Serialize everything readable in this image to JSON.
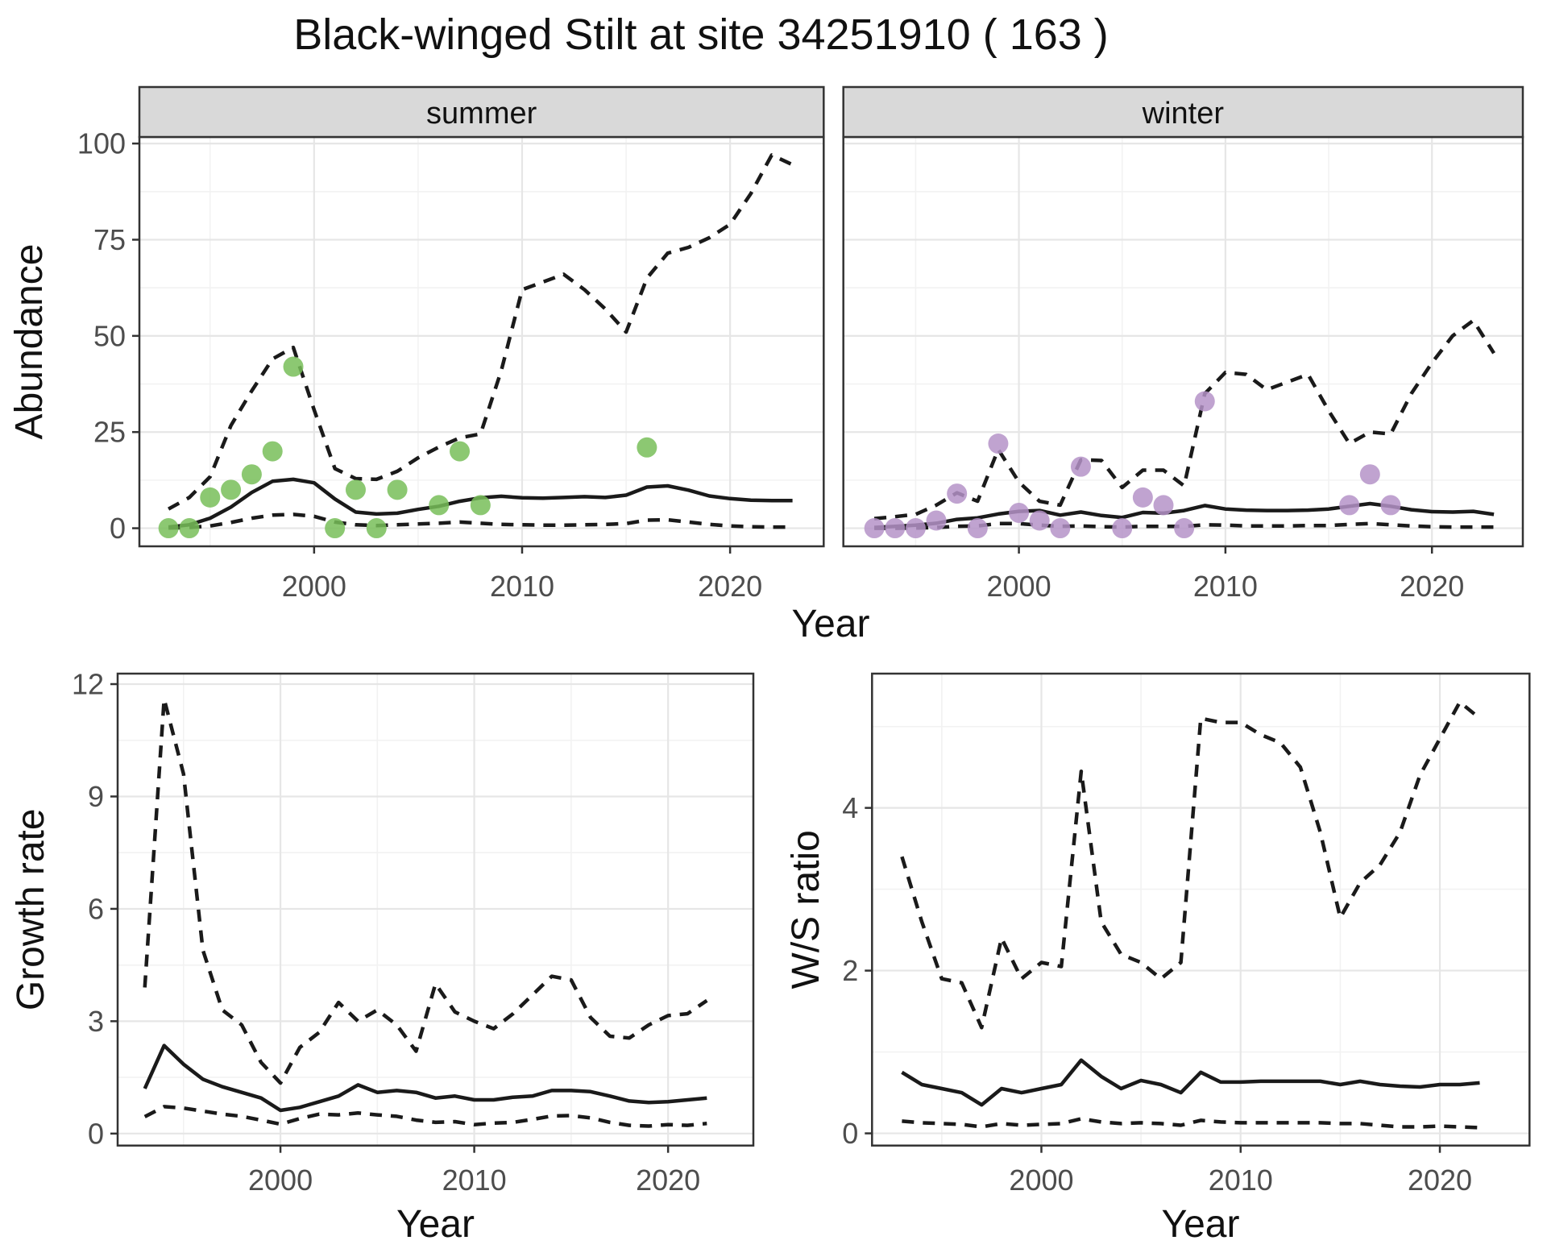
{
  "title": "Black-winged Stilt at site 34251910 ( 163 )",
  "colors": {
    "observed_summer": "#78be59",
    "observed_winter": "#b593c8",
    "line": "#1a1a1a",
    "grid_major": "#e6e6e6",
    "grid_minor": "#f2f2f2",
    "strip_fill": "#d9d9d9",
    "panel_border": "#333333",
    "tick_text": "#4d4d4d",
    "background": "#ffffff"
  },
  "chart_data": [
    {
      "type": "line",
      "name": "abundance-summer",
      "facet_label": "summer",
      "xlabel": "Year",
      "ylabel": "Abundance",
      "xlim": [
        1991.6,
        2024.5
      ],
      "ylim": [
        -4.7,
        101.7
      ],
      "x_ticks": [
        2000,
        2010,
        2020
      ],
      "x_minor": [
        1995,
        2005,
        2015
      ],
      "y_ticks": [
        0,
        25,
        50,
        75,
        100
      ],
      "y_minor": [
        12.5,
        37.5,
        62.5,
        87.5
      ],
      "grid": true,
      "legend": "none",
      "series": [
        {
          "name": "median",
          "style": "solid",
          "x": [
            1993,
            1994,
            1995,
            1996,
            1997,
            1998,
            1999,
            2000,
            2001,
            2002,
            2003,
            2004,
            2005,
            2006,
            2007,
            2008,
            2009,
            2010,
            2011,
            2012,
            2013,
            2014,
            2015,
            2016,
            2017,
            2018,
            2019,
            2020,
            2021,
            2022,
            2023
          ],
          "y": [
            0.3,
            0.9,
            2.6,
            5.5,
            9.3,
            12.2,
            12.7,
            11.8,
            7.6,
            4.2,
            3.7,
            3.9,
            4.9,
            5.7,
            7.0,
            7.9,
            8.3,
            7.9,
            7.8,
            8.0,
            8.2,
            8.0,
            8.6,
            10.7,
            11.0,
            9.9,
            8.4,
            7.7,
            7.3,
            7.2,
            7.2
          ]
        },
        {
          "name": "upper95",
          "style": "dashed",
          "x": [
            1993,
            1994,
            1995,
            1996,
            1997,
            1998,
            1999,
            2000,
            2001,
            2002,
            2003,
            2004,
            2005,
            2006,
            2007,
            2008,
            2009,
            2010,
            2011,
            2012,
            2013,
            2014,
            2015,
            2016,
            2017,
            2018,
            2019,
            2020,
            2021,
            2022,
            2023
          ],
          "y": [
            5,
            8,
            13.4,
            26.7,
            35.7,
            44,
            47,
            30.8,
            15.5,
            12.9,
            12.7,
            14.8,
            18.3,
            21.1,
            23.5,
            24.5,
            41,
            62,
            64,
            66,
            62,
            57,
            51,
            65,
            71.5,
            73,
            75.5,
            79,
            87,
            97,
            94.5
          ]
        },
        {
          "name": "lower95",
          "style": "dashed",
          "x": [
            1993,
            1994,
            1995,
            1996,
            1997,
            1998,
            1999,
            2000,
            2001,
            2002,
            2003,
            2004,
            2005,
            2006,
            2007,
            2008,
            2009,
            2010,
            2011,
            2012,
            2013,
            2014,
            2015,
            2016,
            2017,
            2018,
            2019,
            2020,
            2021,
            2022,
            2023
          ],
          "y": [
            0.05,
            0.2,
            0.6,
            1.5,
            2.6,
            3.4,
            3.6,
            3.1,
            1.6,
            0.9,
            0.7,
            0.9,
            1.1,
            1.3,
            1.6,
            1.3,
            1.0,
            0.9,
            0.8,
            0.8,
            0.9,
            1.0,
            1.2,
            2.1,
            2.2,
            1.6,
            1.0,
            0.6,
            0.4,
            0.3,
            0.3
          ]
        },
        {
          "name": "observed",
          "style": "points",
          "color": "#78be59",
          "x": [
            1993,
            1994,
            1995,
            1996,
            1997,
            1998,
            1999,
            2001,
            2002,
            2003,
            2004,
            2006,
            2007,
            2008,
            2016
          ],
          "y": [
            0,
            0,
            8,
            10,
            14,
            20,
            42,
            0,
            10,
            0,
            10,
            6,
            20,
            6,
            21
          ]
        }
      ]
    },
    {
      "type": "line",
      "name": "abundance-winter",
      "facet_label": "winter",
      "xlabel": "Year",
      "ylabel": "Abundance",
      "xlim": [
        1991.5,
        2024.4
      ],
      "ylim": [
        -4.7,
        101.7
      ],
      "x_ticks": [
        2000,
        2010,
        2020
      ],
      "x_minor": [
        1995,
        2005,
        2015
      ],
      "y_ticks": [
        0,
        25,
        50,
        75,
        100
      ],
      "y_minor": [
        12.5,
        37.5,
        62.5,
        87.5
      ],
      "grid": true,
      "legend": "none",
      "series": [
        {
          "name": "median",
          "style": "solid",
          "x": [
            1993,
            1994,
            1995,
            1996,
            1997,
            1998,
            1999,
            2000,
            2001,
            2002,
            2003,
            2004,
            2005,
            2006,
            2007,
            2008,
            2009,
            2010,
            2011,
            2012,
            2013,
            2014,
            2015,
            2016,
            2017,
            2018,
            2019,
            2020,
            2021,
            2022,
            2023
          ],
          "y": [
            0.2,
            0.5,
            0.8,
            1.3,
            2.3,
            2.7,
            3.7,
            4.4,
            4.6,
            3.4,
            4.2,
            3.3,
            2.8,
            4.1,
            3.9,
            4.6,
            5.9,
            5.0,
            4.7,
            4.6,
            4.6,
            4.7,
            5.0,
            5.7,
            6.4,
            5.7,
            4.8,
            4.3,
            4.2,
            4.4,
            3.6
          ]
        },
        {
          "name": "upper95",
          "style": "dashed",
          "x": [
            1993,
            1994,
            1995,
            1996,
            1997,
            1998,
            1999,
            2000,
            2001,
            2002,
            2003,
            2004,
            2005,
            2006,
            2007,
            2008,
            2009,
            2010,
            2011,
            2012,
            2013,
            2014,
            2015,
            2016,
            2017,
            2018,
            2019,
            2020,
            2021,
            2022,
            2023
          ],
          "y": [
            2.5,
            3.0,
            3.6,
            6.0,
            9.2,
            7.0,
            20.5,
            12.0,
            7.0,
            6.0,
            17.8,
            17.6,
            10.6,
            15.1,
            15.1,
            11.0,
            35,
            40.5,
            40,
            36,
            38,
            40,
            30.5,
            22,
            25,
            24.5,
            35,
            43,
            50,
            54,
            45.5
          ]
        },
        {
          "name": "lower95",
          "style": "dashed",
          "x": [
            1993,
            1994,
            1995,
            1996,
            1997,
            1998,
            1999,
            2000,
            2001,
            2002,
            2003,
            2004,
            2005,
            2006,
            2007,
            2008,
            2009,
            2010,
            2011,
            2012,
            2013,
            2014,
            2015,
            2016,
            2017,
            2018,
            2019,
            2020,
            2021,
            2022,
            2023
          ],
          "y": [
            0,
            0,
            0.05,
            0.2,
            0.5,
            0.6,
            1.2,
            1.2,
            0.8,
            0.5,
            0.6,
            0.4,
            0.3,
            0.5,
            0.5,
            0.5,
            0.9,
            0.8,
            0.6,
            0.6,
            0.6,
            0.7,
            0.7,
            1.0,
            1.2,
            0.9,
            0.6,
            0.4,
            0.3,
            0.3,
            0.3
          ]
        },
        {
          "name": "observed",
          "style": "points",
          "color": "#b593c8",
          "x": [
            1993,
            1994,
            1995,
            1996,
            1997,
            1998,
            1999,
            2000,
            2001,
            2002,
            2003,
            2005,
            2006,
            2007,
            2008,
            2009,
            2016,
            2017,
            2018
          ],
          "y": [
            0,
            0,
            0,
            2,
            9,
            0,
            22,
            4,
            2,
            0,
            16,
            0,
            8,
            6,
            0,
            33,
            6,
            14,
            6
          ]
        }
      ]
    },
    {
      "type": "line",
      "name": "growth-rate",
      "facet_label": "",
      "xlabel": "Year",
      "ylabel": "Growth rate",
      "xlim": [
        1991.6,
        2024.4
      ],
      "ylim": [
        -0.32,
        12.28
      ],
      "x_ticks": [
        2000,
        2010,
        2020
      ],
      "x_minor": [
        1995,
        2005,
        2015
      ],
      "y_ticks": [
        0,
        3,
        6,
        9,
        12
      ],
      "y_minor": [
        1.5,
        4.5,
        7.5,
        10.5
      ],
      "grid": true,
      "legend": "none",
      "series": [
        {
          "name": "median",
          "style": "solid",
          "x": [
            1993,
            1994,
            1995,
            1996,
            1997,
            1998,
            1999,
            2000,
            2001,
            2002,
            2003,
            2004,
            2005,
            2006,
            2007,
            2008,
            2009,
            2010,
            2011,
            2012,
            2013,
            2014,
            2015,
            2016,
            2017,
            2018,
            2019,
            2020,
            2021,
            2022
          ],
          "y": [
            1.2,
            2.35,
            1.85,
            1.45,
            1.25,
            1.1,
            0.95,
            0.62,
            0.7,
            0.85,
            1.0,
            1.3,
            1.1,
            1.15,
            1.1,
            0.95,
            1.0,
            0.9,
            0.9,
            0.97,
            1.0,
            1.15,
            1.15,
            1.12,
            1.0,
            0.87,
            0.83,
            0.85,
            0.9,
            0.95
          ]
        },
        {
          "name": "upper95",
          "style": "dashed",
          "x": [
            1993,
            1994,
            1995,
            1996,
            1997,
            1998,
            1999,
            2000,
            2001,
            2002,
            2003,
            2004,
            2005,
            2006,
            2007,
            2008,
            2009,
            2010,
            2011,
            2012,
            2013,
            2014,
            2015,
            2016,
            2017,
            2018,
            2019,
            2020,
            2021,
            2022
          ],
          "y": [
            3.9,
            11.6,
            9.6,
            4.9,
            3.3,
            2.9,
            1.9,
            1.35,
            2.3,
            2.7,
            3.5,
            3.0,
            3.3,
            2.9,
            2.2,
            4.0,
            3.25,
            3.0,
            2.8,
            3.2,
            3.7,
            4.2,
            4.1,
            3.1,
            2.6,
            2.55,
            2.9,
            3.15,
            3.2,
            3.55
          ]
        },
        {
          "name": "lower95",
          "style": "dashed",
          "x": [
            1993,
            1994,
            1995,
            1996,
            1997,
            1998,
            1999,
            2000,
            2001,
            2002,
            2003,
            2004,
            2005,
            2006,
            2007,
            2008,
            2009,
            2010,
            2011,
            2012,
            2013,
            2014,
            2015,
            2016,
            2017,
            2018,
            2019,
            2020,
            2021,
            2022
          ],
          "y": [
            0.45,
            0.72,
            0.68,
            0.6,
            0.52,
            0.46,
            0.36,
            0.25,
            0.4,
            0.52,
            0.5,
            0.55,
            0.5,
            0.46,
            0.36,
            0.3,
            0.32,
            0.24,
            0.28,
            0.3,
            0.38,
            0.47,
            0.48,
            0.42,
            0.3,
            0.22,
            0.2,
            0.24,
            0.22,
            0.27
          ]
        }
      ]
    },
    {
      "type": "line",
      "name": "ws-ratio",
      "facet_label": "",
      "xlabel": "Year",
      "ylabel": "W/S ratio",
      "xlim": [
        1991.5,
        2024.5
      ],
      "ylim": [
        -0.15,
        5.65
      ],
      "x_ticks": [
        2000,
        2010,
        2020
      ],
      "x_minor": [
        1995,
        2005,
        2015
      ],
      "y_ticks": [
        0,
        2,
        4
      ],
      "y_minor": [
        1,
        3,
        5
      ],
      "grid": true,
      "legend": "none",
      "series": [
        {
          "name": "median",
          "style": "solid",
          "x": [
            1993,
            1994,
            1995,
            1996,
            1997,
            1998,
            1999,
            2000,
            2001,
            2002,
            2003,
            2004,
            2005,
            2006,
            2007,
            2008,
            2009,
            2010,
            2011,
            2012,
            2013,
            2014,
            2015,
            2016,
            2017,
            2018,
            2019,
            2020,
            2021,
            2022
          ],
          "y": [
            0.75,
            0.6,
            0.55,
            0.5,
            0.35,
            0.55,
            0.5,
            0.55,
            0.6,
            0.9,
            0.7,
            0.55,
            0.65,
            0.6,
            0.5,
            0.75,
            0.63,
            0.63,
            0.64,
            0.64,
            0.64,
            0.64,
            0.6,
            0.64,
            0.6,
            0.58,
            0.57,
            0.6,
            0.6,
            0.62
          ]
        },
        {
          "name": "upper95",
          "style": "dashed",
          "x": [
            1993,
            1994,
            1995,
            1996,
            1997,
            1998,
            1999,
            2000,
            2001,
            2002,
            2003,
            2004,
            2005,
            2006,
            2007,
            2008,
            2009,
            2010,
            2011,
            2012,
            2013,
            2014,
            2015,
            2016,
            2017,
            2018,
            2019,
            2020,
            2021,
            2022
          ],
          "y": [
            3.4,
            2.6,
            1.9,
            1.85,
            1.3,
            2.4,
            1.9,
            2.1,
            2.05,
            4.45,
            2.6,
            2.2,
            2.1,
            1.9,
            2.1,
            5.1,
            5.05,
            5.05,
            4.9,
            4.8,
            4.5,
            3.7,
            2.65,
            3.08,
            3.3,
            3.7,
            4.4,
            4.85,
            5.3,
            5.1
          ]
        },
        {
          "name": "lower95",
          "style": "dashed",
          "x": [
            1993,
            1994,
            1995,
            1996,
            1997,
            1998,
            1999,
            2000,
            2001,
            2002,
            2003,
            2004,
            2005,
            2006,
            2007,
            2008,
            2009,
            2010,
            2011,
            2012,
            2013,
            2014,
            2015,
            2016,
            2017,
            2018,
            2019,
            2020,
            2021,
            2022
          ],
          "y": [
            0.15,
            0.13,
            0.12,
            0.11,
            0.08,
            0.12,
            0.1,
            0.11,
            0.12,
            0.18,
            0.14,
            0.12,
            0.13,
            0.12,
            0.1,
            0.16,
            0.14,
            0.13,
            0.13,
            0.13,
            0.13,
            0.13,
            0.12,
            0.12,
            0.1,
            0.08,
            0.08,
            0.09,
            0.08,
            0.07
          ]
        }
      ]
    }
  ]
}
